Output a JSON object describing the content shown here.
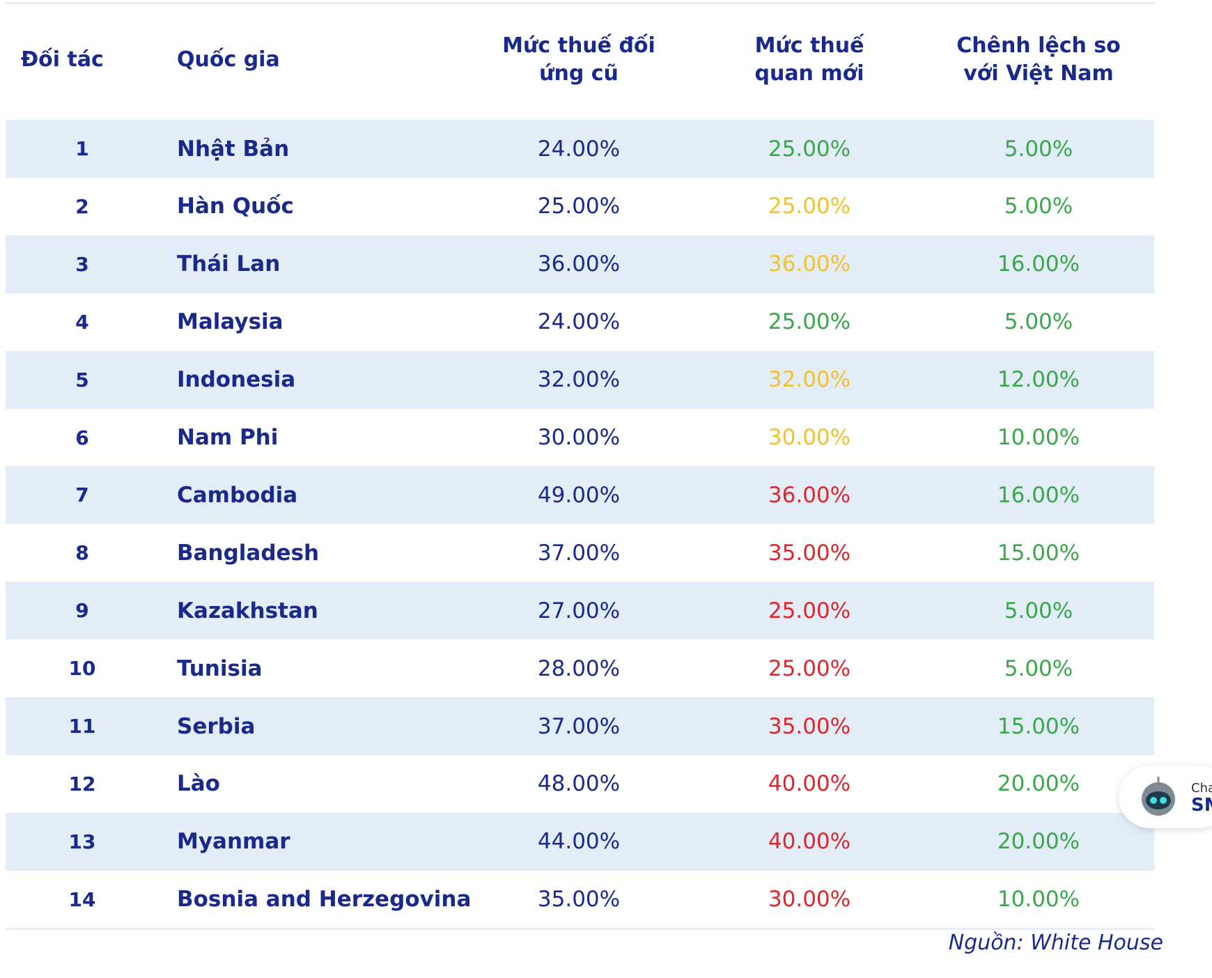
{
  "table": {
    "header": [
      "Đối tác",
      "Quốc gia",
      "Mức thuế đối ứng cũ",
      "Mức thuế quan mới",
      "Chênh lệch so với Việt Nam"
    ],
    "rows": [
      [
        "1",
        "Nhật Bản",
        "24.00%",
        "25.00%",
        "5.00%"
      ],
      [
        "2",
        "Hàn Quốc",
        "25.00%",
        "25.00%",
        "5.00%"
      ],
      [
        "3",
        "Thái Lan",
        "36.00%",
        "36.00%",
        "16.00%"
      ],
      [
        "4",
        "Malaysia",
        "24.00%",
        "25.00%",
        "5.00%"
      ],
      [
        "5",
        "Indonesia",
        "32.00%",
        "32.00%",
        "12.00%"
      ],
      [
        "6",
        "Nam Phi",
        "30.00%",
        "30.00%",
        "10.00%"
      ],
      [
        "7",
        "Cambodia",
        "49.00%",
        "36.00%",
        "16.00%"
      ],
      [
        "8",
        "Bangladesh",
        "37.00%",
        "35.00%",
        "15.00%"
      ],
      [
        "9",
        "Kazakhstan",
        "27.00%",
        "25.00%",
        "5.00%"
      ],
      [
        "10",
        "Tunisia",
        "28.00%",
        "25.00%",
        "5.00%"
      ],
      [
        "11",
        "Serbia",
        "37.00%",
        "35.00%",
        "15.00%"
      ],
      [
        "12",
        "Lào",
        "48.00%",
        "40.00%",
        "20.00%"
      ],
      [
        "13",
        "Myanmar",
        "44.00%",
        "40.00%",
        "20.00%"
      ],
      [
        "14",
        "Bosnia and Herzegovina",
        "35.00%",
        "30.00%",
        "10.00%"
      ]
    ],
    "new_rate_colors": [
      "#3aa84a",
      "#f2c12e",
      "#f2c12e",
      "#3aa84a",
      "#f2c12e",
      "#f2c12e",
      "#e0262b",
      "#e0262b",
      "#e0262b",
      "#e0262b",
      "#e0262b",
      "#e0262b",
      "#e0262b",
      "#e0262b"
    ],
    "diff_color": "#3aa84a"
  },
  "source": "Nguồn: White House",
  "chat_widget": [
    "Cha",
    "SM"
  ]
}
